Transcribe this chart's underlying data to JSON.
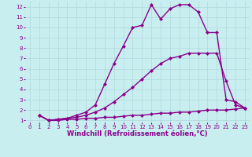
{
  "xlabel": "Windchill (Refroidissement éolien,°C)",
  "bg_color": "#c8eef0",
  "line_color": "#8b008b",
  "grid_color": "#b0d8dc",
  "xlim": [
    -0.5,
    23.5
  ],
  "ylim": [
    0.8,
    12.5
  ],
  "xticks": [
    0,
    1,
    2,
    3,
    4,
    5,
    6,
    7,
    8,
    9,
    10,
    11,
    12,
    13,
    14,
    15,
    16,
    17,
    18,
    19,
    20,
    21,
    22,
    23
  ],
  "yticks": [
    1,
    2,
    3,
    4,
    5,
    6,
    7,
    8,
    9,
    10,
    11,
    12
  ],
  "line1_x": [
    1,
    2,
    3,
    4,
    5,
    6,
    7,
    8,
    9,
    10,
    11,
    12,
    13,
    14,
    15,
    16,
    17,
    18,
    19,
    20,
    21,
    22,
    23
  ],
  "line1_y": [
    1.5,
    1.0,
    1.0,
    1.1,
    1.1,
    1.2,
    1.2,
    1.3,
    1.3,
    1.4,
    1.5,
    1.5,
    1.6,
    1.7,
    1.7,
    1.8,
    1.8,
    1.9,
    2.0,
    2.0,
    2.0,
    2.1,
    2.2
  ],
  "line2_x": [
    1,
    2,
    3,
    4,
    5,
    6,
    7,
    8,
    9,
    10,
    11,
    12,
    13,
    14,
    15,
    16,
    17,
    18,
    19,
    20,
    21,
    22,
    23
  ],
  "line2_y": [
    1.5,
    1.0,
    1.1,
    1.2,
    1.3,
    1.5,
    1.8,
    2.2,
    2.8,
    3.5,
    4.2,
    5.0,
    5.8,
    6.5,
    7.0,
    7.2,
    7.5,
    7.5,
    7.5,
    7.5,
    4.8,
    2.5,
    2.2
  ],
  "line3_x": [
    1,
    2,
    3,
    4,
    5,
    6,
    7,
    8,
    9,
    10,
    11,
    12,
    13,
    14,
    15,
    16,
    17,
    18,
    19,
    20,
    21,
    22,
    23
  ],
  "line3_y": [
    1.5,
    1.0,
    1.1,
    1.2,
    1.5,
    1.8,
    2.5,
    4.5,
    6.5,
    8.2,
    10.0,
    10.2,
    12.2,
    10.8,
    11.8,
    12.2,
    12.2,
    11.5,
    9.5,
    9.5,
    3.0,
    2.8,
    2.2
  ],
  "marker": "D",
  "markersize": 2.5,
  "linewidth": 1.0,
  "label_fontsize": 6.0,
  "tick_fontsize": 5.0
}
